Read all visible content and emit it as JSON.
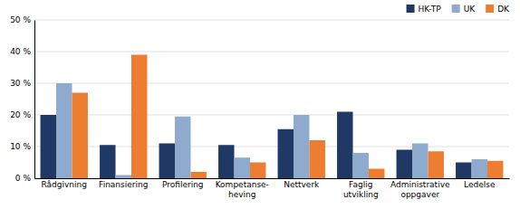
{
  "chart_data": {
    "type": "bar",
    "categories": [
      "Rådgivning",
      "Finansiering",
      "Profilering",
      "Kompetanse-\nheving",
      "Nettverk",
      "Faglig\nutvikling",
      "Administrative\noppgaver",
      "Ledelse"
    ],
    "series": [
      {
        "name": "HK-TP",
        "color": "#1f3864",
        "values": [
          20,
          10.5,
          11,
          10.5,
          15.5,
          21,
          9,
          5
        ]
      },
      {
        "name": "UK",
        "color": "#8eaacc",
        "values": [
          30,
          1,
          19.5,
          6.5,
          20,
          8,
          11,
          6
        ]
      },
      {
        "name": "DK",
        "color": "#ed7d31",
        "values": [
          27,
          39,
          2,
          5,
          12,
          3,
          8.5,
          5.5
        ]
      }
    ],
    "ylim": [
      0,
      50
    ],
    "yticks": [
      {
        "value": 0,
        "label": "0 %"
      },
      {
        "value": 10,
        "label": "10 %"
      },
      {
        "value": 20,
        "label": "20 %"
      },
      {
        "value": 30,
        "label": "30 %"
      },
      {
        "value": 40,
        "label": "40 %"
      },
      {
        "value": 50,
        "label": "50 %"
      }
    ],
    "grid": true,
    "legend": "upper right"
  }
}
